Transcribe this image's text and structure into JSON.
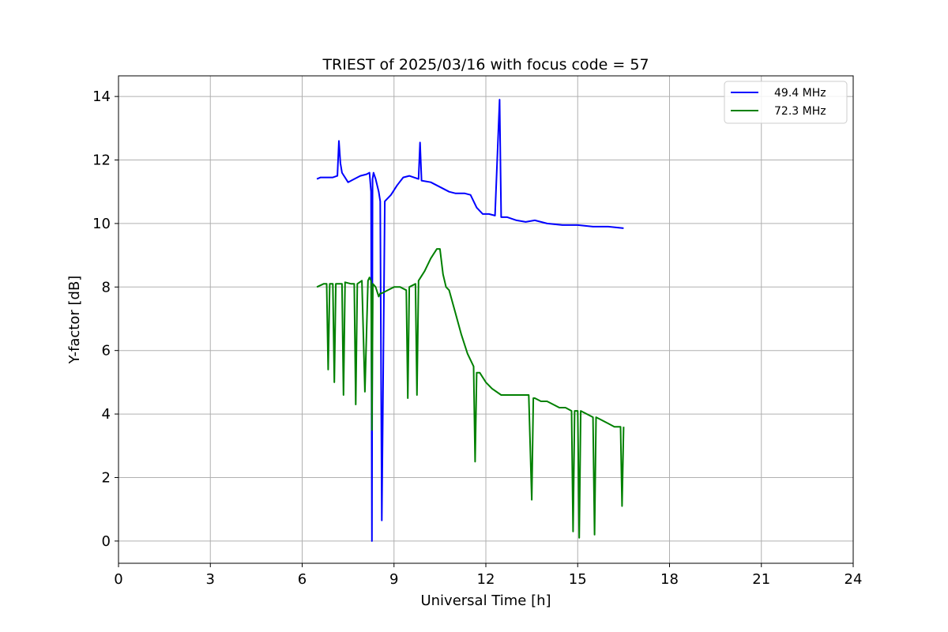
{
  "chart_data": {
    "type": "line",
    "title": "TRIEST of 2025/03/16 with focus code = 57",
    "xlabel": "Universal Time [h]",
    "ylabel": "Y-factor [dB]",
    "xlim": [
      0,
      24
    ],
    "ylim": [
      -0.7,
      14.65
    ],
    "xticks": [
      0,
      3,
      6,
      9,
      12,
      15,
      18,
      21,
      24
    ],
    "yticks": [
      0,
      2,
      4,
      6,
      8,
      10,
      12,
      14
    ],
    "grid": true,
    "legend_position": "top-right",
    "series": [
      {
        "name": "49.4 MHz",
        "color": "#0000ff",
        "x": [
          6.48,
          6.6,
          6.8,
          7.0,
          7.15,
          7.2,
          7.25,
          7.3,
          7.5,
          7.7,
          7.9,
          8.1,
          8.2,
          8.25,
          8.28,
          8.3,
          8.33,
          8.4,
          8.5,
          8.55,
          8.6,
          8.7,
          8.9,
          9.1,
          9.3,
          9.5,
          9.8,
          9.85,
          9.9,
          10.2,
          10.5,
          10.8,
          11.0,
          11.3,
          11.5,
          11.7,
          11.9,
          12.1,
          12.3,
          12.45,
          12.5,
          12.7,
          13.0,
          13.3,
          13.6,
          14.0,
          14.5,
          15.0,
          15.5,
          16.0,
          16.5
        ],
        "y": [
          11.4,
          11.45,
          11.45,
          11.45,
          11.5,
          12.6,
          11.9,
          11.6,
          11.3,
          11.4,
          11.5,
          11.55,
          11.6,
          11.0,
          0.0,
          11.4,
          11.6,
          11.4,
          11.0,
          10.7,
          0.65,
          10.7,
          10.9,
          11.2,
          11.45,
          11.5,
          11.4,
          12.55,
          11.35,
          11.3,
          11.15,
          11.0,
          10.95,
          10.95,
          10.9,
          10.5,
          10.3,
          10.3,
          10.25,
          13.9,
          10.2,
          10.2,
          10.1,
          10.05,
          10.1,
          10.0,
          9.95,
          9.95,
          9.9,
          9.9,
          9.85
        ]
      },
      {
        "name": "72.3 MHz",
        "color": "#008000",
        "x": [
          6.48,
          6.7,
          6.8,
          6.85,
          6.9,
          7.0,
          7.05,
          7.1,
          7.3,
          7.35,
          7.4,
          7.6,
          7.7,
          7.75,
          7.8,
          7.95,
          8.05,
          8.15,
          8.2,
          8.25,
          8.28,
          8.31,
          8.4,
          8.5,
          8.55,
          8.6,
          8.8,
          9.0,
          9.2,
          9.4,
          9.45,
          9.5,
          9.7,
          9.75,
          9.8,
          10.0,
          10.2,
          10.4,
          10.5,
          10.6,
          10.7,
          10.8,
          11.0,
          11.2,
          11.4,
          11.6,
          11.65,
          11.7,
          11.8,
          12.0,
          12.2,
          12.5,
          12.8,
          13.1,
          13.4,
          13.5,
          13.55,
          13.6,
          13.8,
          14.0,
          14.2,
          14.4,
          14.6,
          14.8,
          14.85,
          14.9,
          15.0,
          15.05,
          15.1,
          15.3,
          15.5,
          15.55,
          15.6,
          15.8,
          16.0,
          16.2,
          16.4,
          16.45,
          16.5
        ],
        "y": [
          8.0,
          8.1,
          8.1,
          5.4,
          8.1,
          8.1,
          5.0,
          8.1,
          8.1,
          4.6,
          8.15,
          8.1,
          8.1,
          4.3,
          8.1,
          8.2,
          4.7,
          8.2,
          8.3,
          8.2,
          3.5,
          8.1,
          8.0,
          7.7,
          7.8,
          7.8,
          7.9,
          8.0,
          8.0,
          7.9,
          4.5,
          8.0,
          8.1,
          4.6,
          8.2,
          8.5,
          8.9,
          9.2,
          9.2,
          8.4,
          8.0,
          7.9,
          7.2,
          6.5,
          5.9,
          5.5,
          2.5,
          5.3,
          5.3,
          5.0,
          4.8,
          4.6,
          4.6,
          4.6,
          4.6,
          1.3,
          4.5,
          4.5,
          4.4,
          4.4,
          4.3,
          4.2,
          4.2,
          4.1,
          0.3,
          4.1,
          4.1,
          0.1,
          4.1,
          4.0,
          3.9,
          0.2,
          3.9,
          3.8,
          3.7,
          3.6,
          3.6,
          1.1,
          3.6
        ]
      }
    ]
  }
}
